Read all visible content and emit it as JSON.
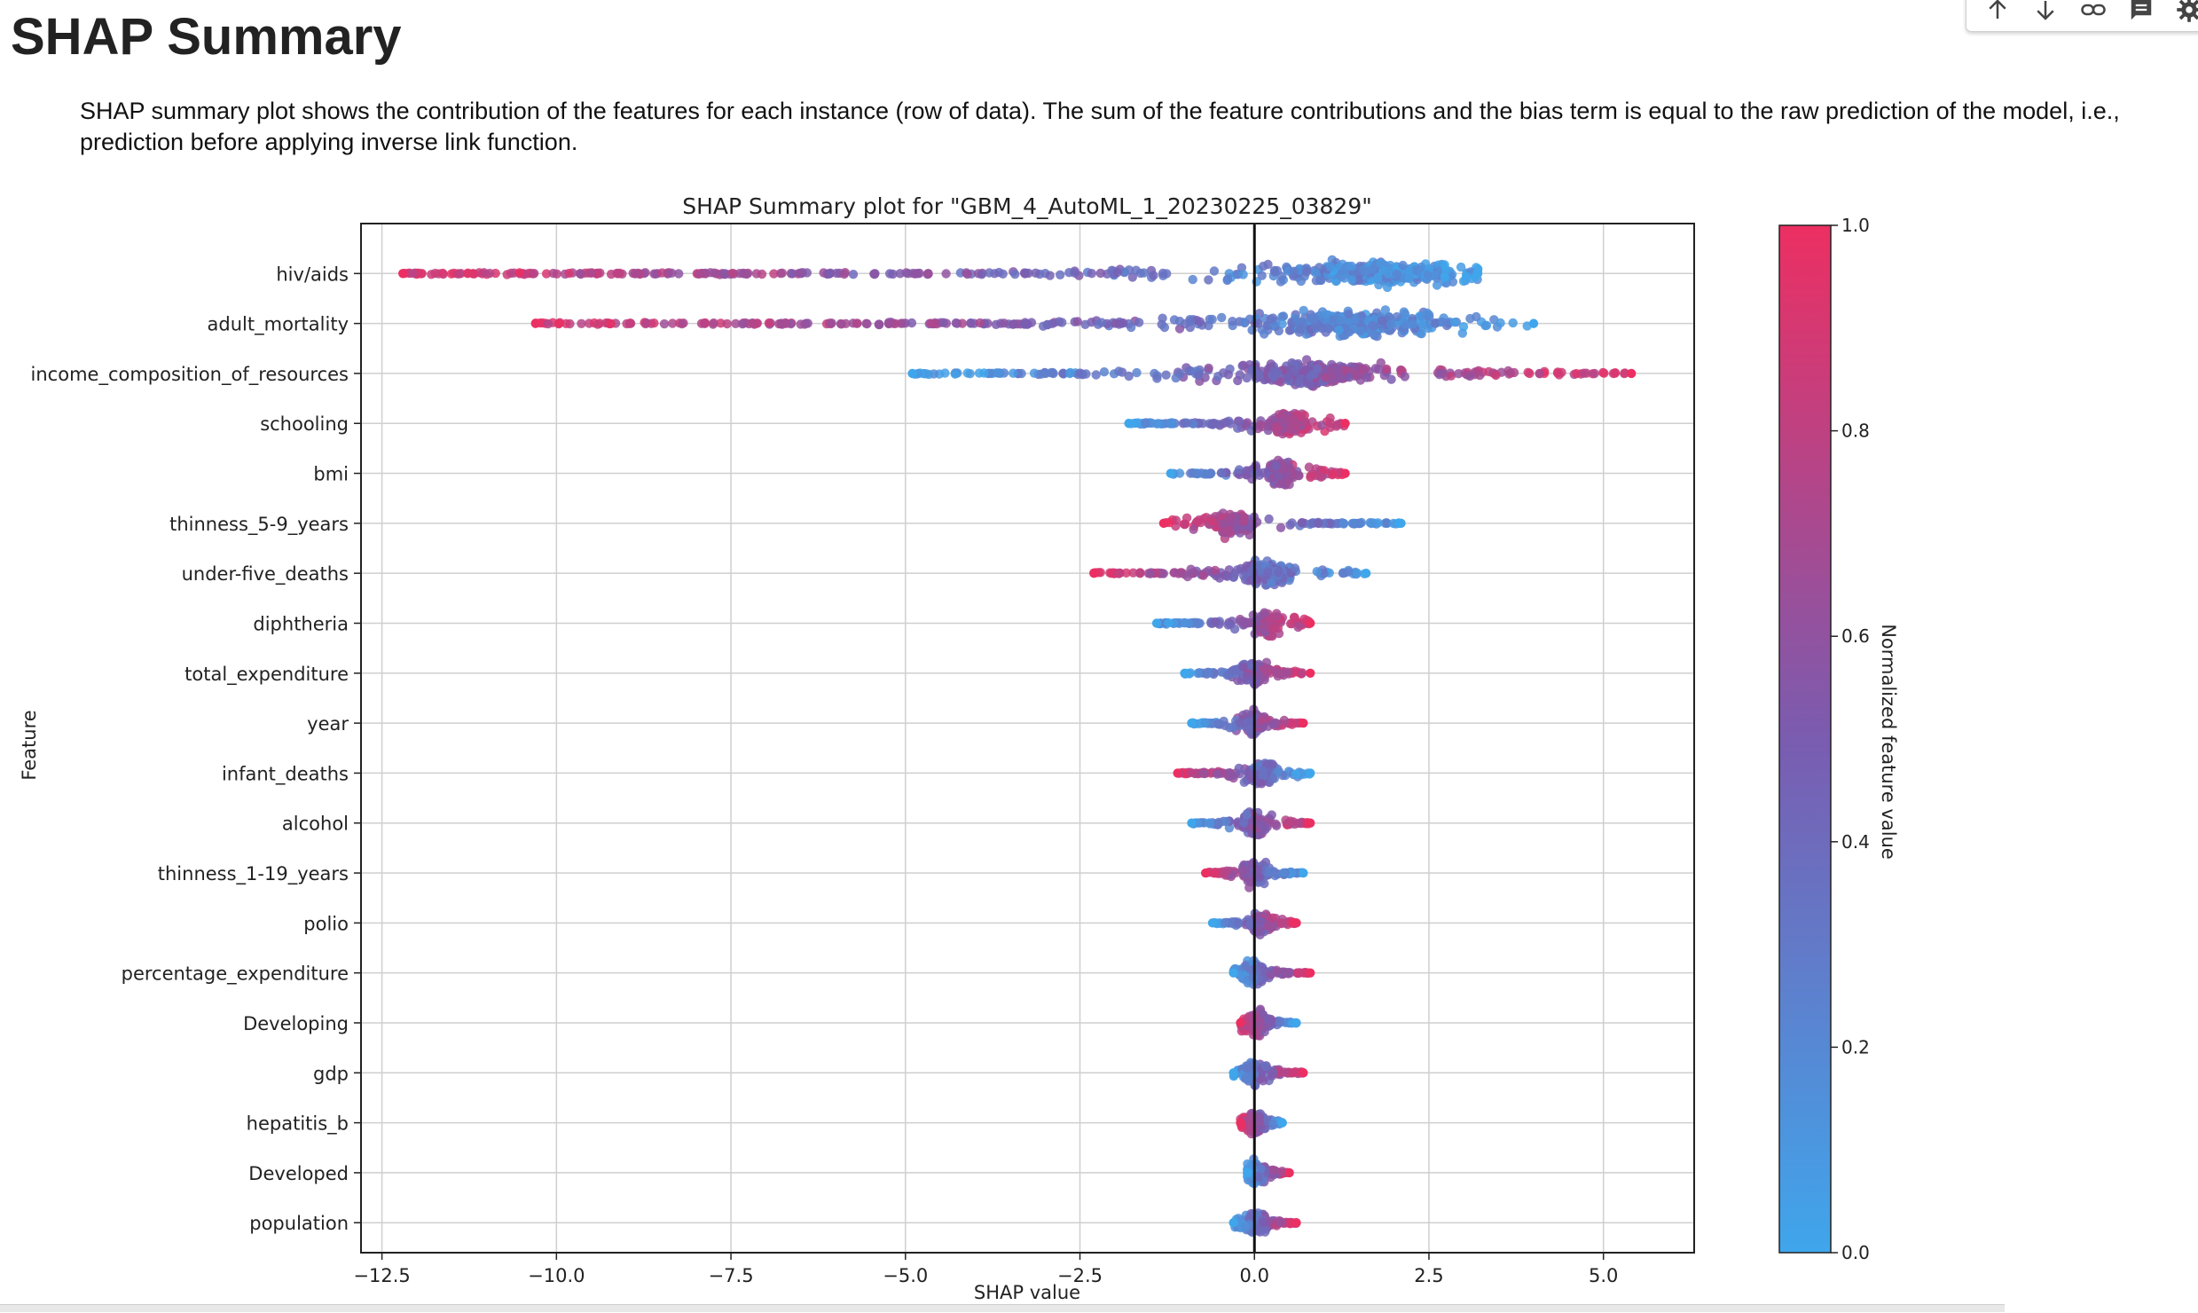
{
  "page": {
    "title": "SHAP Summary",
    "description": "SHAP summary plot shows the contribution of the features for each instance (row of data). The sum of the feature contributions and the bias term is equal to the raw prediction of the model, i.e., prediction before applying inverse link function."
  },
  "toolbar": {
    "icons": [
      "arrow-up-icon",
      "arrow-down-icon",
      "link-icon",
      "comment-icon",
      "gear-icon"
    ]
  },
  "colors": {
    "low": "#3fa6ec",
    "mid": "#7a5cb0",
    "high": "#ec2f62"
  },
  "chart_data": {
    "type": "scatter",
    "title": "SHAP Summary plot for \"GBM_4_AutoML_1_20230225_03829\"",
    "xlabel": "SHAP value",
    "ylabel": "Feature",
    "xlim": [
      -12.8,
      6.3
    ],
    "xticks": [
      -12.5,
      -10.0,
      -7.5,
      -5.0,
      -2.5,
      0.0,
      2.5,
      5.0
    ],
    "xtick_labels": [
      "−12.5",
      "−10.0",
      "−7.5",
      "−5.0",
      "−2.5",
      "0.0",
      "2.5",
      "5.0"
    ],
    "grid": true,
    "zero_line": 0.0,
    "colorbar": {
      "label": "Normalized feature value",
      "range": [
        0.0,
        1.0
      ],
      "ticks": [
        0.0,
        0.2,
        0.4,
        0.6,
        0.8,
        1.0
      ],
      "tick_labels": [
        "0.0",
        "0.2",
        "0.4",
        "0.6",
        "0.8",
        "1.0"
      ]
    },
    "features": [
      {
        "name": "hiv/aids",
        "min": -12.2,
        "max": 3.2,
        "peak": 1.8,
        "low_side": "right"
      },
      {
        "name": "adult_mortality",
        "min": -10.3,
        "max": 4.0,
        "peak": 1.4,
        "low_side": "right"
      },
      {
        "name": "income_composition_of_resources",
        "min": -4.9,
        "max": 5.4,
        "peak": 0.8,
        "low_side": "left"
      },
      {
        "name": "schooling",
        "min": -1.8,
        "max": 1.3,
        "peak": 0.5,
        "low_side": "left"
      },
      {
        "name": "bmi",
        "min": -1.2,
        "max": 1.3,
        "peak": 0.4,
        "low_side": "left"
      },
      {
        "name": "thinness_5-9_years",
        "min": -1.3,
        "max": 2.1,
        "peak": -0.3,
        "low_side": "right"
      },
      {
        "name": "under-five_deaths",
        "min": -2.3,
        "max": 1.6,
        "peak": 0.2,
        "low_side": "right"
      },
      {
        "name": "diphtheria",
        "min": -1.4,
        "max": 0.8,
        "peak": 0.2,
        "low_side": "left"
      },
      {
        "name": "total_expenditure",
        "min": -1.0,
        "max": 0.8,
        "peak": 0.0,
        "low_side": "left"
      },
      {
        "name": "year",
        "min": -0.9,
        "max": 0.7,
        "peak": 0.0,
        "low_side": "left"
      },
      {
        "name": "infant_deaths",
        "min": -1.1,
        "max": 0.8,
        "peak": 0.1,
        "low_side": "right"
      },
      {
        "name": "alcohol",
        "min": -0.9,
        "max": 0.8,
        "peak": 0.0,
        "low_side": "left"
      },
      {
        "name": "thinness_1-19_years",
        "min": -0.7,
        "max": 0.7,
        "peak": 0.0,
        "low_side": "right"
      },
      {
        "name": "polio",
        "min": -0.6,
        "max": 0.6,
        "peak": 0.1,
        "low_side": "left"
      },
      {
        "name": "percentage_expenditure",
        "min": -0.3,
        "max": 0.8,
        "peak": 0.0,
        "low_side": "left"
      },
      {
        "name": "Developing",
        "min": -0.2,
        "max": 0.6,
        "peak": 0.0,
        "low_side": "right"
      },
      {
        "name": "gdp",
        "min": -0.3,
        "max": 0.7,
        "peak": 0.0,
        "low_side": "left"
      },
      {
        "name": "hepatitis_b",
        "min": -0.2,
        "max": 0.4,
        "peak": 0.0,
        "low_side": "right"
      },
      {
        "name": "Developed",
        "min": -0.1,
        "max": 0.5,
        "peak": 0.0,
        "low_side": "left"
      },
      {
        "name": "population",
        "min": -0.3,
        "max": 0.6,
        "peak": 0.0,
        "low_side": "left"
      }
    ]
  }
}
